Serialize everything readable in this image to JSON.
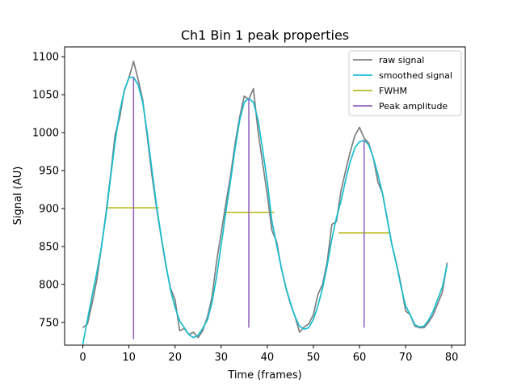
{
  "chart_data": {
    "type": "line",
    "title": "Ch1 Bin 1 peak properties",
    "xlabel": "Time (frames)",
    "ylabel": "Signal (AU)",
    "xlim": [
      -3.95,
      82.95
    ],
    "ylim": [
      720,
      1113
    ],
    "xticks": [
      0,
      10,
      20,
      30,
      40,
      50,
      60,
      70,
      80
    ],
    "yticks": [
      750,
      800,
      850,
      900,
      950,
      1000,
      1050,
      1100
    ],
    "grid": false,
    "legend_position": "top-right",
    "series": [
      {
        "name": "raw signal",
        "color": "#7f7f7f",
        "x": [
          0,
          1,
          2,
          3,
          4,
          5,
          6,
          7,
          8,
          9,
          10,
          11,
          12,
          13,
          14,
          15,
          16,
          17,
          18,
          19,
          20,
          21,
          22,
          23,
          24,
          25,
          26,
          27,
          28,
          29,
          30,
          31,
          32,
          33,
          34,
          35,
          36,
          37,
          38,
          39,
          40,
          41,
          42,
          43,
          44,
          45,
          46,
          47,
          48,
          49,
          50,
          51,
          52,
          53,
          54,
          55,
          56,
          57,
          58,
          59,
          60,
          61,
          62,
          63,
          64,
          65,
          66,
          67,
          68,
          69,
          70,
          71,
          72,
          73,
          74,
          75,
          76,
          77,
          78,
          79
        ],
        "y": [
          743,
          748,
          775,
          805,
          848,
          893,
          943,
          997,
          1020,
          1056,
          1072,
          1094,
          1070,
          1043,
          993,
          943,
          900,
          862,
          825,
          795,
          780,
          739,
          742,
          734,
          737,
          730,
          739,
          757,
          783,
          830,
          868,
          906,
          942,
          985,
          1020,
          1048,
          1044,
          1058,
          1002,
          960,
          918,
          871,
          857,
          823,
          796,
          775,
          758,
          737,
          744,
          748,
          760,
          787,
          800,
          830,
          879,
          883,
          924,
          950,
          975,
          996,
          1007,
          993,
          986,
          967,
          935,
          920,
          886,
          853,
          828,
          800,
          765,
          760,
          745,
          743,
          743,
          750,
          760,
          775,
          790,
          829
        ]
      },
      {
        "name": "smoothed signal",
        "color": "#17becf",
        "x": [
          0,
          1,
          2,
          3,
          4,
          5,
          6,
          7,
          8,
          9,
          10,
          11,
          12,
          13,
          14,
          15,
          16,
          17,
          18,
          19,
          20,
          21,
          22,
          23,
          24,
          25,
          26,
          27,
          28,
          29,
          30,
          31,
          32,
          33,
          34,
          35,
          36,
          37,
          38,
          39,
          40,
          41,
          42,
          43,
          44,
          45,
          46,
          47,
          48,
          49,
          50,
          51,
          52,
          53,
          54,
          55,
          56,
          57,
          58,
          59,
          60,
          61,
          62,
          63,
          64,
          65,
          66,
          67,
          68,
          69,
          70,
          71,
          72,
          73,
          74,
          75,
          76,
          77,
          78,
          79
        ],
        "y": [
          721,
          754,
          785,
          815,
          848,
          890,
          940,
          988,
          1028,
          1055,
          1073,
          1073,
          1063,
          1040,
          998,
          950,
          903,
          863,
          827,
          793,
          770,
          752,
          743,
          734,
          730,
          733,
          742,
          753,
          776,
          810,
          852,
          895,
          935,
          978,
          1016,
          1040,
          1045,
          1040,
          1017,
          978,
          935,
          883,
          853,
          823,
          797,
          776,
          758,
          745,
          741,
          743,
          754,
          772,
          795,
          825,
          860,
          888,
          910,
          938,
          962,
          980,
          988,
          990,
          984,
          967,
          945,
          920,
          887,
          853,
          827,
          797,
          772,
          760,
          747,
          744,
          745,
          753,
          765,
          781,
          797,
          826
        ]
      }
    ],
    "fwhm": {
      "name": "FWHM",
      "color": "#bcbd22",
      "segments": [
        {
          "x1": 5,
          "x2": 16.5,
          "y": 901
        },
        {
          "x1": 31,
          "x2": 41.5,
          "y": 895
        },
        {
          "x1": 55.5,
          "x2": 66.5,
          "y": 868
        }
      ]
    },
    "peak_amplitude": {
      "name": "Peak amplitude",
      "color": "#9467bd",
      "lines": [
        {
          "x": 11,
          "y_min": 728,
          "y_max": 1073
        },
        {
          "x": 36,
          "y_min": 743,
          "y_max": 1045
        },
        {
          "x": 61,
          "y_min": 743,
          "y_max": 990
        }
      ]
    }
  }
}
